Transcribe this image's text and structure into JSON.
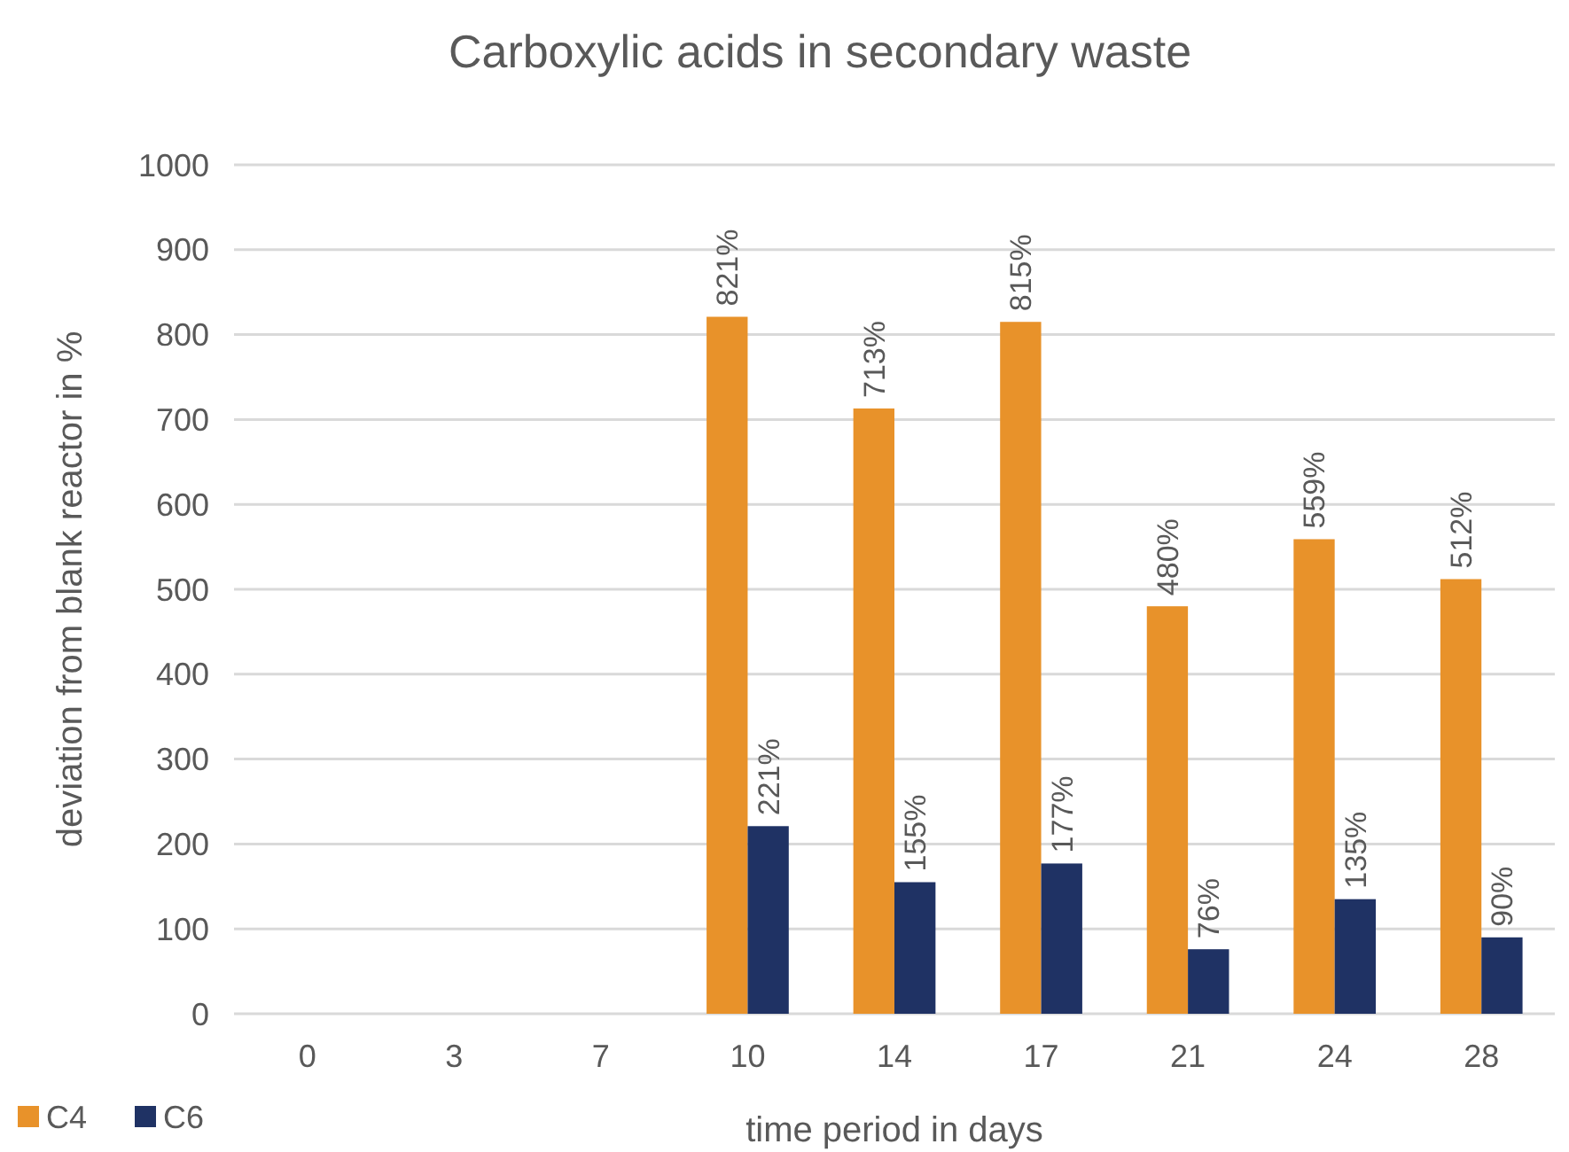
{
  "chart_data": {
    "type": "bar",
    "title": "Carboxylic acids in secondary waste",
    "xlabel": "time period in days",
    "ylabel": "deviation from blank reactor in %",
    "categories": [
      "0",
      "3",
      "7",
      "10",
      "14",
      "17",
      "21",
      "24",
      "28"
    ],
    "series": [
      {
        "name": "C4",
        "color": "#e8922a",
        "values": [
          null,
          null,
          null,
          821,
          713,
          815,
          480,
          559,
          512
        ],
        "value_labels": [
          null,
          null,
          null,
          "821%",
          "713%",
          "815%",
          "480%",
          "559%",
          "512%"
        ]
      },
      {
        "name": "C6",
        "color": "#1f3264",
        "values": [
          null,
          null,
          null,
          221,
          155,
          177,
          76,
          135,
          90
        ],
        "value_labels": [
          null,
          null,
          null,
          "221%",
          "155%",
          "177%",
          "76%",
          "135%",
          "90%"
        ]
      }
    ],
    "ylim": [
      0,
      1000
    ],
    "yticks": [
      0,
      100,
      200,
      300,
      400,
      500,
      600,
      700,
      800,
      900,
      1000
    ],
    "grid": "y",
    "legend": "bottom left"
  }
}
